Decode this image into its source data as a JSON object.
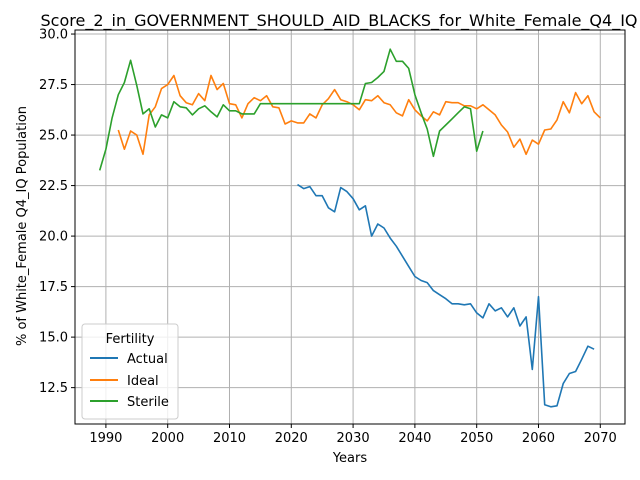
{
  "chart_data": {
    "type": "line",
    "title": "Score_2_in_GOVERNMENT_SHOULD_AID_BLACKS_for_White_Female_Q4_IQ",
    "xlabel": "Years",
    "ylabel": "% of White_Female Q4_IQ Population",
    "xlim": [
      1985,
      2074
    ],
    "ylim": [
      10.7,
      30.2
    ],
    "xticks": [
      1990,
      2000,
      2010,
      2020,
      2030,
      2040,
      2050,
      2060,
      2070
    ],
    "yticks": [
      12.5,
      15.0,
      17.5,
      20.0,
      22.5,
      25.0,
      27.5,
      30.0
    ],
    "ytick_labels": [
      "12.5",
      "15.0",
      "17.5",
      "20.0",
      "22.5",
      "25.0",
      "27.5",
      "30.0"
    ],
    "grid": true,
    "legend": {
      "title": "Fertility",
      "placement": "lower-left"
    },
    "series": [
      {
        "name": "Actual",
        "color": "#1f77b4",
        "x": [
          2021,
          2022,
          2023,
          2024,
          2025,
          2026,
          2027,
          2028,
          2029,
          2030,
          2031,
          2032,
          2033,
          2034,
          2035,
          2036,
          2037,
          2038,
          2039,
          2040,
          2041,
          2042,
          2043,
          2044,
          2045,
          2046,
          2047,
          2048,
          2049,
          2050,
          2051,
          2052,
          2053,
          2054,
          2055,
          2056,
          2057,
          2058,
          2059,
          2060,
          2061,
          2062,
          2063,
          2064,
          2065,
          2066,
          2067,
          2068,
          2069,
          2070
        ],
        "y": [
          22.55,
          22.35,
          22.45,
          22.0,
          22.0,
          21.4,
          21.2,
          22.4,
          22.2,
          21.85,
          21.3,
          21.5,
          20.0,
          20.6,
          20.4,
          19.9,
          19.5,
          19.0,
          18.5,
          18.0,
          17.8,
          17.7,
          17.3,
          17.1,
          16.9,
          16.65,
          16.65,
          16.6,
          16.65,
          16.2,
          15.95,
          16.65,
          16.3,
          16.45,
          16.0,
          16.45,
          15.55,
          16.0,
          13.4,
          17.0,
          11.65,
          11.55,
          11.6,
          12.7,
          13.2,
          13.3,
          13.9,
          14.55,
          14.4,
          null
        ]
      },
      {
        "name": "Ideal",
        "color": "#ff7f0e",
        "x": [
          1992,
          1993,
          1994,
          1995,
          1996,
          1997,
          1998,
          1999,
          2000,
          2001,
          2002,
          2003,
          2004,
          2005,
          2006,
          2007,
          2008,
          2009,
          2010,
          2011,
          2012,
          2013,
          2014,
          2015,
          2016,
          2017,
          2018,
          2019,
          2020,
          2021,
          2022,
          2023,
          2024,
          2025,
          2026,
          2027,
          2028,
          2029,
          2030,
          2031,
          2032,
          2033,
          2034,
          2035,
          2036,
          2037,
          2038,
          2039,
          2040,
          2041,
          2042,
          2043,
          2044,
          2045,
          2046,
          2047,
          2048,
          2049,
          2050,
          2051,
          2052,
          2053,
          2054,
          2055,
          2056,
          2057,
          2058,
          2059,
          2060,
          2061,
          2062,
          2063,
          2064,
          2065,
          2066,
          2067,
          2068,
          2069,
          2070
        ],
        "y": [
          25.25,
          24.3,
          25.2,
          25.0,
          24.05,
          26.0,
          26.4,
          27.3,
          27.5,
          27.95,
          26.95,
          26.6,
          26.5,
          27.05,
          26.7,
          27.95,
          27.25,
          27.55,
          26.55,
          26.5,
          25.85,
          26.55,
          26.85,
          26.7,
          26.95,
          26.4,
          26.35,
          25.55,
          25.7,
          25.6,
          25.6,
          26.05,
          25.85,
          26.5,
          26.8,
          27.25,
          26.75,
          26.65,
          26.5,
          26.25,
          26.75,
          26.7,
          26.95,
          26.6,
          26.5,
          26.1,
          25.95,
          26.75,
          26.25,
          25.95,
          25.7,
          26.15,
          26.0,
          26.65,
          26.6,
          26.6,
          26.45,
          26.45,
          26.3,
          26.5,
          26.25,
          26.0,
          25.5,
          25.15,
          24.4,
          24.8,
          24.05,
          24.75,
          24.55,
          25.25,
          25.3,
          25.75,
          26.65,
          26.1,
          27.1,
          26.55,
          26.95,
          26.15,
          25.85
        ]
      },
      {
        "name": "Sterile",
        "color": "#2ca02c",
        "x": [
          1989,
          1990,
          1991,
          1992,
          1993,
          1994,
          1995,
          1996,
          1997,
          1998,
          1999,
          2000,
          2001,
          2002,
          2003,
          2004,
          2005,
          2006,
          2007,
          2008,
          2009,
          2010,
          2011,
          2012,
          2013,
          2014,
          2015,
          2016,
          2017,
          2018,
          2019,
          2020,
          2021,
          2022,
          2023,
          2024,
          2025,
          2026,
          2027,
          2028,
          2029,
          2030,
          2031,
          2032,
          2033,
          2034,
          2035,
          2036,
          2037,
          2038,
          2039,
          2040,
          2041,
          2042,
          2043,
          2044,
          2045,
          2046,
          2047,
          2048,
          2049,
          2050,
          2051
        ],
        "y": [
          23.25,
          24.3,
          25.85,
          27.0,
          27.6,
          28.7,
          27.45,
          26.05,
          26.3,
          25.4,
          26.0,
          25.85,
          26.65,
          26.4,
          26.35,
          26.0,
          26.3,
          26.45,
          26.15,
          25.9,
          26.5,
          26.2,
          26.2,
          26.05,
          26.05,
          26.05,
          26.55,
          26.55,
          26.55,
          26.55,
          26.55,
          26.55,
          26.55,
          26.55,
          26.55,
          26.55,
          26.55,
          26.55,
          26.55,
          26.55,
          26.55,
          26.55,
          26.55,
          27.55,
          27.6,
          27.85,
          28.15,
          29.25,
          28.65,
          28.65,
          28.3,
          27.0,
          26.1,
          25.3,
          23.95,
          25.2,
          25.5,
          25.8,
          26.1,
          26.4,
          26.3,
          24.2,
          25.2
        ]
      }
    ]
  }
}
